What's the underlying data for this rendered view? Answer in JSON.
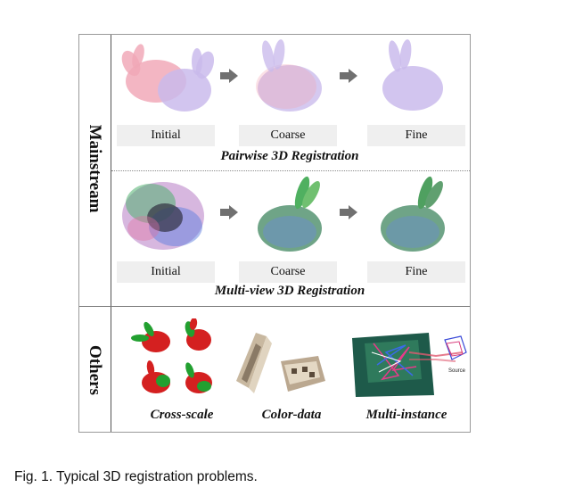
{
  "figure": {
    "side_labels": {
      "top": "Mainstream",
      "bottom": "Others"
    },
    "pairwise": {
      "title": "Pairwise 3D Registration",
      "stages": [
        "Initial",
        "Coarse",
        "Fine"
      ]
    },
    "multiview": {
      "title": "Multi-view 3D Registration",
      "stages": [
        "Initial",
        "Coarse",
        "Fine"
      ]
    },
    "others": {
      "items": [
        "Cross-scale",
        "Color-data",
        "Multi-instance"
      ],
      "source_text": "Source"
    },
    "colors": {
      "bunny_pink": "#f0a0b0",
      "bunny_lavender": "#c4b4ea",
      "bunny_green": "#5f9a7a",
      "cross_scale_red": "#d42020",
      "cross_scale_green": "#22a030",
      "arrow_gray": "#707070"
    }
  },
  "caption": "Fig. 1. Typical 3D registration problems."
}
